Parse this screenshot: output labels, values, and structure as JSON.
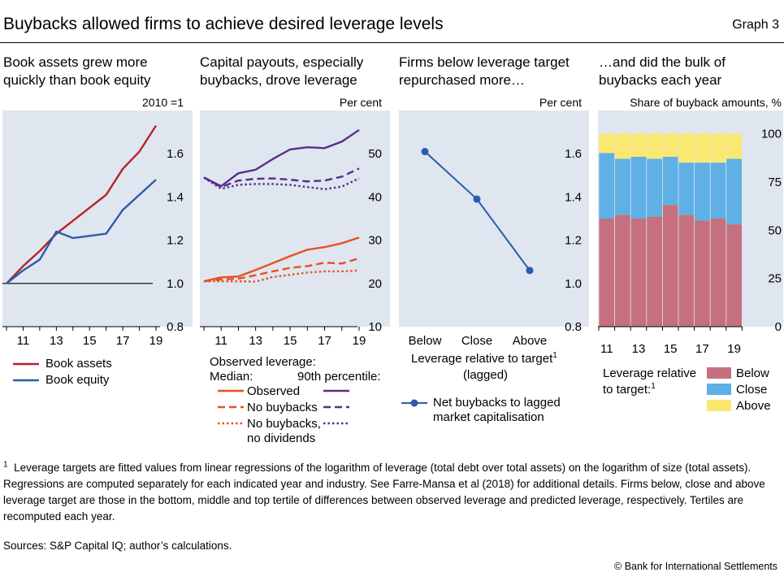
{
  "header": {
    "title": "Buybacks allowed firms to achieve desired leverage levels",
    "graph_label": "Graph 3"
  },
  "legends": {
    "p1": [
      "Book assets",
      "Book equity"
    ],
    "p2_heading": "Observed leverage:",
    "p2_median": "Median:",
    "p2_p90": "90th percentile:",
    "p2_items": [
      "Observed",
      "No buybacks",
      "No buybacks,",
      "no dividends"
    ],
    "p3_xlabel_main": "Leverage relative to target",
    "p3_xlabel_sup": "1",
    "p3_xlabel_sub": "(lagged)",
    "p3_item_1": "Net buybacks to lagged",
    "p3_item_2": "market capitalisation",
    "p4_heading_1": "Leverage relative",
    "p4_heading_2": "to target:",
    "p4_heading_sup": "1",
    "p4_items": [
      "Below",
      "Close",
      "Above"
    ]
  },
  "footnote": {
    "marker": "1",
    "text": "Leverage targets are fitted values from linear regressions of the logarithm of leverage (total debt over total assets) on the logarithm of size (total assets). Regressions are computed separately for each indicated year and industry. See Farre-Mansa et al (2018) for additional details. Firms below, close and above leverage target are those in the bottom, middle and top tertile of differences between observed leverage and predicted leverage, respectively. Tertiles are recomputed each year."
  },
  "sources": "Sources: S&P Capital IQ; author’s calculations.",
  "copyright": "© Bank for International Settlements",
  "colors": {
    "red": "#b5222b",
    "blue": "#2a5caa",
    "purple": "#5a2d8a",
    "orange": "#e8501e",
    "below": "#c5707e",
    "close": "#5eb0e5",
    "above": "#fbe870",
    "panel_bg": "#dfe6f0"
  },
  "chart_data": [
    {
      "type": "line",
      "title": "Book assets grew more quickly than book equity",
      "unit_label": "2010 =1",
      "x": [
        2010,
        2011,
        2012,
        2013,
        2014,
        2015,
        2016,
        2017,
        2018,
        2019,
        2020
      ],
      "xticks": [
        "11",
        "13",
        "15",
        "17",
        "19"
      ],
      "xtick_values": [
        2011,
        2013,
        2015,
        2017,
        2019
      ],
      "ylim": [
        0.8,
        1.8
      ],
      "yticks": [
        0.8,
        1.0,
        1.2,
        1.4,
        1.6
      ],
      "ytick_labels": [
        "0.8",
        "1.0",
        "1.2",
        "1.4",
        "1.6"
      ],
      "reference_line": 1.0,
      "series": [
        {
          "name": "Book assets",
          "color": "#b5222b",
          "values": [
            1.0,
            1.08,
            1.15,
            1.23,
            1.29,
            1.35,
            1.41,
            1.53,
            1.61,
            1.73,
            null
          ]
        },
        {
          "name": "Book equity",
          "color": "#2a5caa",
          "values": [
            1.0,
            1.06,
            1.11,
            1.24,
            1.21,
            1.22,
            1.23,
            1.34,
            1.41,
            1.48,
            null
          ]
        }
      ]
    },
    {
      "type": "line",
      "title": "Capital payouts, especially buybacks, drove leverage",
      "unit_label": "Per cent",
      "x": [
        2010,
        2011,
        2012,
        2013,
        2014,
        2015,
        2016,
        2017,
        2018,
        2019,
        2020
      ],
      "xticks": [
        "11",
        "13",
        "15",
        "17",
        "19"
      ],
      "xtick_values": [
        2011,
        2013,
        2015,
        2017,
        2019
      ],
      "ylim": [
        10,
        60
      ],
      "yticks": [
        10,
        20,
        30,
        40,
        50
      ],
      "ytick_labels": [
        "10",
        "20",
        "30",
        "40",
        "50"
      ],
      "series": [
        {
          "name": "Observed",
          "group": "90th percentile",
          "color": "#5a2d8a",
          "dash": "solid",
          "values": [
            44.5,
            42.5,
            45.5,
            46.3,
            48.8,
            51.0,
            51.5,
            51.3,
            52.8,
            55.5,
            null
          ]
        },
        {
          "name": "No buybacks",
          "group": "90th percentile",
          "color": "#5a2d8a",
          "dash": "dashed",
          "values": [
            44.5,
            42.3,
            43.8,
            44.2,
            44.3,
            44.0,
            43.6,
            43.8,
            44.7,
            46.6,
            null
          ]
        },
        {
          "name": "No buybacks, no dividends",
          "group": "90th percentile",
          "color": "#5a2d8a",
          "dash": "dotted",
          "values": [
            44.5,
            41.9,
            42.8,
            43.0,
            43.0,
            42.8,
            42.3,
            41.8,
            42.4,
            44.3,
            null
          ]
        },
        {
          "name": "Observed",
          "group": "Median",
          "color": "#e8501e",
          "dash": "solid",
          "values": [
            20.5,
            21.4,
            21.6,
            23.1,
            24.7,
            26.3,
            27.8,
            28.4,
            29.3,
            30.6,
            null
          ]
        },
        {
          "name": "No buybacks",
          "group": "Median",
          "color": "#e8501e",
          "dash": "dashed",
          "values": [
            20.5,
            20.9,
            21.1,
            21.9,
            22.8,
            23.6,
            24.0,
            24.8,
            24.6,
            25.8,
            null
          ]
        },
        {
          "name": "No buybacks, no dividends",
          "group": "Median",
          "color": "#e8501e",
          "dash": "dotted",
          "values": [
            20.5,
            20.5,
            20.5,
            20.4,
            21.5,
            22.0,
            22.5,
            22.8,
            22.8,
            23.0,
            null
          ]
        }
      ]
    },
    {
      "type": "line",
      "title": "Firms below leverage target repurchased more…",
      "unit_label": "Per cent",
      "categories": [
        "Below",
        "Close",
        "Above"
      ],
      "xlabel": "Leverage relative to target (lagged)",
      "ylim": [
        0.8,
        1.8
      ],
      "yticks": [
        0.8,
        1.0,
        1.2,
        1.4,
        1.6
      ],
      "ytick_labels": [
        "0.8",
        "1.0",
        "1.2",
        "1.4",
        "1.6"
      ],
      "series": [
        {
          "name": "Net buybacks to lagged market capitalisation",
          "color": "#2a5caa",
          "markers": true,
          "values": [
            1.61,
            1.39,
            1.06
          ]
        }
      ]
    },
    {
      "type": "bar",
      "stacked": true,
      "title": "…and did the bulk of buybacks each year",
      "unit_label": "Share of buyback amounts, %",
      "categories": [
        "2011",
        "2012",
        "2013",
        "2014",
        "2015",
        "2016",
        "2017",
        "2018",
        "2019"
      ],
      "xticks": [
        "11",
        "13",
        "15",
        "17",
        "19"
      ],
      "xtick_values": [
        "2011",
        "2013",
        "2015",
        "2017",
        "2019"
      ],
      "ylim": [
        0,
        112
      ],
      "yticks": [
        0,
        25,
        50,
        75,
        100
      ],
      "ytick_labels": [
        "0",
        "25",
        "50",
        "75",
        "100"
      ],
      "series": [
        {
          "name": "Below",
          "color": "#c5707e",
          "values": [
            56,
            58,
            56,
            57,
            63,
            58,
            55,
            56,
            53
          ]
        },
        {
          "name": "Close",
          "color": "#5eb0e5",
          "values": [
            34,
            29,
            32,
            30,
            25,
            27,
            30,
            29,
            34
          ]
        },
        {
          "name": "Above",
          "color": "#fbe870",
          "values": [
            10,
            13,
            12,
            13,
            12,
            15,
            15,
            15,
            13
          ]
        }
      ]
    }
  ]
}
